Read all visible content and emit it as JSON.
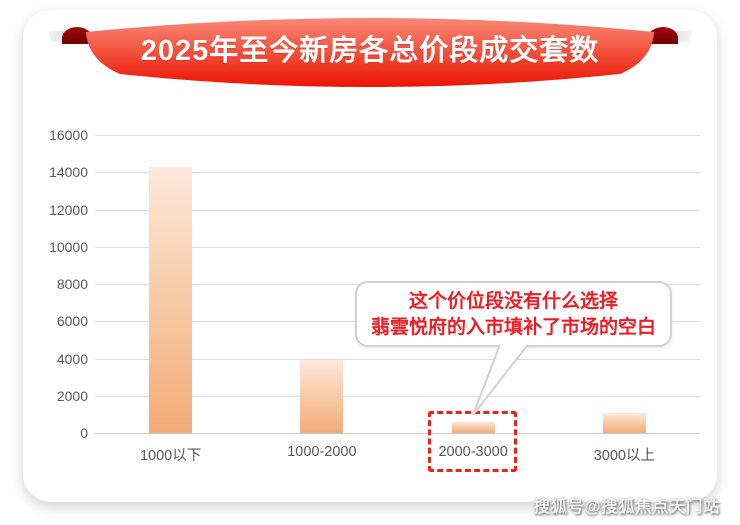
{
  "banner": {
    "title": "2025年至今新房各总价段成交套数"
  },
  "chart_data": {
    "type": "bar",
    "title": "2025年至今新房各总价段成交套数",
    "categories": [
      "1000以下",
      "1000-2000",
      "2000-3000",
      "3000以上"
    ],
    "values": [
      14300,
      3900,
      600,
      1100
    ],
    "xlabel": "",
    "ylabel": "",
    "ylim": [
      0,
      16000
    ],
    "ytick_step": 2000,
    "grid": true,
    "legend": false,
    "bar_gradient_top": "#fde8da",
    "bar_gradient_bottom": "#f2ab7a",
    "highlighted_category": "2000-3000"
  },
  "callout": {
    "line1": "这个价位段没有什么选择",
    "line2": "翡雲悦府的入市填补了市场的空白",
    "text_color": "#ee1c25",
    "points_to": "2000-3000"
  },
  "watermark": {
    "text": "搜狐号@搜狐焦点天门站"
  },
  "colors": {
    "ribbon_top": "#f98877",
    "ribbon_mid": "#f14a35",
    "ribbon_bottom": "#ec1404",
    "ribbon_curl": "#8e0209",
    "ribbon_tail_gray": "#d9d9d9",
    "axis_text": "#595959",
    "gridline": "#dcdcdc",
    "bubble_border": "#d2d2d2",
    "highlight_box_border": "#ea2318"
  }
}
